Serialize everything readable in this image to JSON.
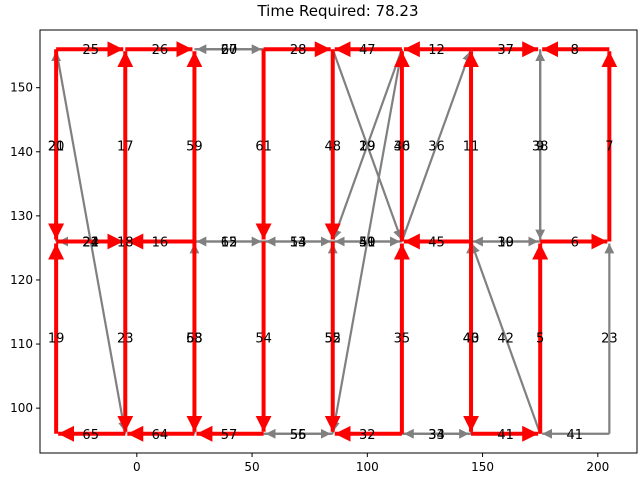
{
  "chart_data": {
    "type": "network-route",
    "title": "Time Required: 78.23",
    "xlabel": "",
    "ylabel": "",
    "xlim": [
      -42,
      217
    ],
    "ylim": [
      93,
      159
    ],
    "x_ticks": [
      0,
      50,
      100,
      150,
      200
    ],
    "y_ticks": [
      100,
      110,
      120,
      130,
      140,
      150
    ],
    "grid": false,
    "colors": {
      "route": "#ff0000",
      "other": "#808080"
    },
    "edges": [
      {
        "from": [
          -35,
          156
        ],
        "to": [
          -5,
          156
        ],
        "label": "25",
        "route": true
      },
      {
        "from": [
          -5,
          156
        ],
        "to": [
          25,
          156
        ],
        "label": "26",
        "route": true
      },
      {
        "from": [
          25,
          156
        ],
        "to": [
          55,
          156
        ],
        "label": "27",
        "route": false
      },
      {
        "from": [
          55,
          156
        ],
        "to": [
          25,
          156
        ],
        "label": "60",
        "route": false
      },
      {
        "from": [
          55,
          156
        ],
        "to": [
          85,
          156
        ],
        "label": "28",
        "route": true
      },
      {
        "from": [
          115,
          156
        ],
        "to": [
          85,
          156
        ],
        "label": "47",
        "route": true
      },
      {
        "from": [
          145,
          156
        ],
        "to": [
          115,
          156
        ],
        "label": "12",
        "route": true
      },
      {
        "from": [
          145,
          156
        ],
        "to": [
          175,
          156
        ],
        "label": "37",
        "route": true
      },
      {
        "from": [
          205,
          156
        ],
        "to": [
          175,
          156
        ],
        "label": "8",
        "route": true
      },
      {
        "from": [
          -35,
          156
        ],
        "to": [
          -35,
          126
        ],
        "label": "20",
        "route": true
      },
      {
        "from": [
          -35,
          126
        ],
        "to": [
          -35,
          156
        ],
        "label": "21",
        "route": false
      },
      {
        "from": [
          -5,
          126
        ],
        "to": [
          -5,
          156
        ],
        "label": "17",
        "route": true
      },
      {
        "from": [
          25,
          126
        ],
        "to": [
          25,
          156
        ],
        "label": "59",
        "route": true
      },
      {
        "from": [
          55,
          156
        ],
        "to": [
          55,
          126
        ],
        "label": "61",
        "route": true
      },
      {
        "from": [
          85,
          156
        ],
        "to": [
          85,
          126
        ],
        "label": "48",
        "route": true
      },
      {
        "from": [
          115,
          126
        ],
        "to": [
          115,
          156
        ],
        "label": "46",
        "route": true
      },
      {
        "from": [
          115,
          156
        ],
        "to": [
          115,
          126
        ],
        "label": "30",
        "route": false
      },
      {
        "from": [
          145,
          126
        ],
        "to": [
          145,
          156
        ],
        "label": "11",
        "route": true
      },
      {
        "from": [
          175,
          156
        ],
        "to": [
          175,
          126
        ],
        "label": "38",
        "route": false
      },
      {
        "from": [
          175,
          126
        ],
        "to": [
          175,
          156
        ],
        "label": "9",
        "route": false
      },
      {
        "from": [
          205,
          126
        ],
        "to": [
          205,
          156
        ],
        "label": "7",
        "route": true
      },
      {
        "from": [
          85,
          156
        ],
        "to": [
          115,
          126
        ],
        "label": "29",
        "route": false
      },
      {
        "from": [
          115,
          156
        ],
        "to": [
          85,
          126
        ],
        "label": "19",
        "route": false
      },
      {
        "from": [
          115,
          126
        ],
        "to": [
          145,
          156
        ],
        "label": "36",
        "route": false
      },
      {
        "from": [
          -35,
          126
        ],
        "to": [
          -5,
          126
        ],
        "label": "24",
        "route": true
      },
      {
        "from": [
          -5,
          126
        ],
        "to": [
          -35,
          126
        ],
        "label": "22",
        "route": false
      },
      {
        "from": [
          25,
          126
        ],
        "to": [
          -5,
          126
        ],
        "label": "16",
        "route": true
      },
      {
        "from": [
          55,
          126
        ],
        "to": [
          25,
          126
        ],
        "label": "15",
        "route": false
      },
      {
        "from": [
          25,
          126
        ],
        "to": [
          55,
          126
        ],
        "label": "62",
        "route": false
      },
      {
        "from": [
          85,
          126
        ],
        "to": [
          55,
          126
        ],
        "label": "53",
        "route": false
      },
      {
        "from": [
          55,
          126
        ],
        "to": [
          85,
          126
        ],
        "label": "14",
        "route": false
      },
      {
        "from": [
          85,
          126
        ],
        "to": [
          115,
          126
        ],
        "label": "49",
        "route": false
      },
      {
        "from": [
          115,
          126
        ],
        "to": [
          85,
          126
        ],
        "label": "50",
        "route": false
      },
      {
        "from": [
          145,
          126
        ],
        "to": [
          115,
          126
        ],
        "label": "45",
        "route": true
      },
      {
        "from": [
          145,
          126
        ],
        "to": [
          175,
          126
        ],
        "label": "10",
        "route": false
      },
      {
        "from": [
          175,
          126
        ],
        "to": [
          145,
          126
        ],
        "label": "39",
        "route": false
      },
      {
        "from": [
          175,
          126
        ],
        "to": [
          205,
          126
        ],
        "label": "6",
        "route": true
      },
      {
        "from": [
          -35,
          96
        ],
        "to": [
          -35,
          126
        ],
        "label": "19",
        "route": true
      },
      {
        "from": [
          -5,
          96
        ],
        "to": [
          -5,
          156
        ],
        "label": "18",
        "route": false
      },
      {
        "from": [
          -35,
          156
        ],
        "to": [
          -5,
          96
        ],
        "label": "21",
        "route": false
      },
      {
        "from": [
          -5,
          126
        ],
        "to": [
          -5,
          96
        ],
        "label": "23",
        "route": true
      },
      {
        "from": [
          25,
          96
        ],
        "to": [
          25,
          126
        ],
        "label": "58",
        "route": false
      },
      {
        "from": [
          25,
          126
        ],
        "to": [
          25,
          96
        ],
        "label": "63",
        "route": true
      },
      {
        "from": [
          55,
          126
        ],
        "to": [
          55,
          96
        ],
        "label": "54",
        "route": true
      },
      {
        "from": [
          85,
          96
        ],
        "to": [
          85,
          126
        ],
        "label": "55",
        "route": false
      },
      {
        "from": [
          85,
          126
        ],
        "to": [
          85,
          96
        ],
        "label": "52",
        "route": true
      },
      {
        "from": [
          115,
          156
        ],
        "to": [
          85,
          96
        ],
        "label": "51",
        "route": false
      },
      {
        "from": [
          115,
          96
        ],
        "to": [
          115,
          126
        ],
        "label": "35",
        "route": true
      },
      {
        "from": [
          145,
          126
        ],
        "to": [
          145,
          96
        ],
        "label": "40",
        "route": true
      },
      {
        "from": [
          145,
          96
        ],
        "to": [
          145,
          126
        ],
        "label": "43",
        "route": false
      },
      {
        "from": [
          175,
          96
        ],
        "to": [
          145,
          126
        ],
        "label": "42",
        "route": false
      },
      {
        "from": [
          175,
          96
        ],
        "to": [
          175,
          126
        ],
        "label": "5",
        "route": true
      },
      {
        "from": [
          205,
          96
        ],
        "to": [
          205,
          126
        ],
        "label": "23",
        "route": false
      },
      {
        "from": [
          -5,
          96
        ],
        "to": [
          -35,
          96
        ],
        "label": "65",
        "route": true
      },
      {
        "from": [
          25,
          96
        ],
        "to": [
          -5,
          96
        ],
        "label": "64",
        "route": true
      },
      {
        "from": [
          55,
          96
        ],
        "to": [
          25,
          96
        ],
        "label": "57",
        "route": true
      },
      {
        "from": [
          55,
          96
        ],
        "to": [
          85,
          96
        ],
        "label": "55",
        "route": false
      },
      {
        "from": [
          85,
          96
        ],
        "to": [
          55,
          96
        ],
        "label": "56",
        "route": false
      },
      {
        "from": [
          115,
          96
        ],
        "to": [
          85,
          96
        ],
        "label": "32",
        "route": true
      },
      {
        "from": [
          115,
          96
        ],
        "to": [
          145,
          96
        ],
        "label": "34",
        "route": false
      },
      {
        "from": [
          145,
          96
        ],
        "to": [
          115,
          96
        ],
        "label": "33",
        "route": false
      },
      {
        "from": [
          145,
          96
        ],
        "to": [
          175,
          96
        ],
        "label": "41",
        "route": true
      },
      {
        "from": [
          205,
          96
        ],
        "to": [
          175,
          96
        ],
        "label": "41",
        "route": false
      }
    ]
  }
}
